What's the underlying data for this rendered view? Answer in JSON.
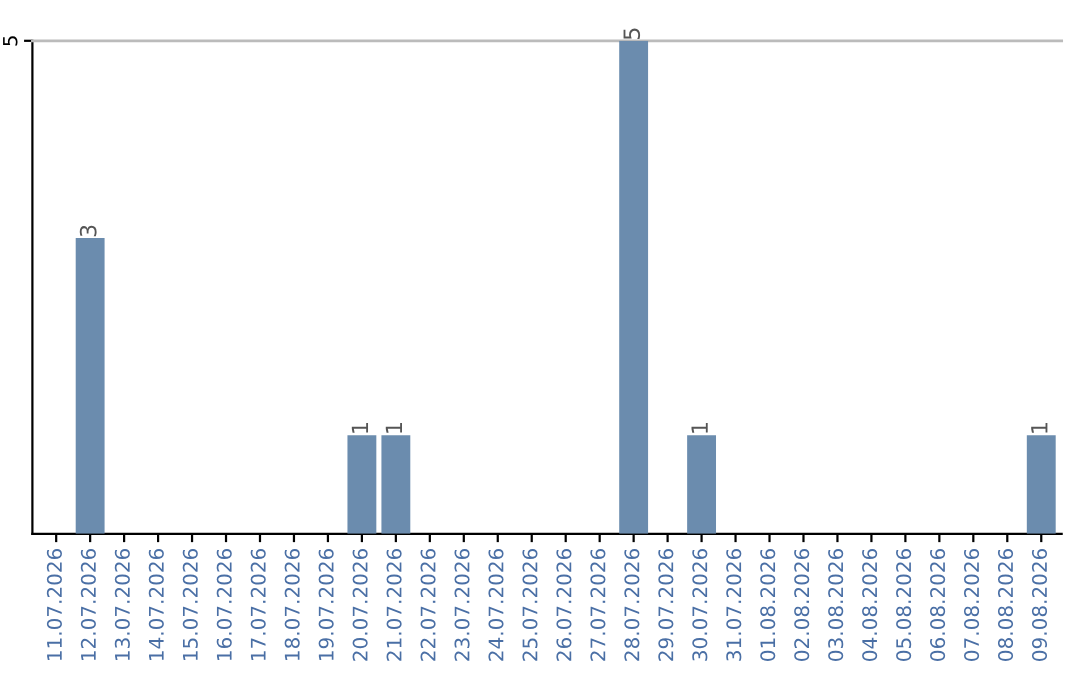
{
  "chart_data": {
    "type": "bar",
    "categories": [
      "11.07.2026",
      "12.07.2026",
      "13.07.2026",
      "14.07.2026",
      "15.07.2026",
      "16.07.2026",
      "17.07.2026",
      "18.07.2026",
      "19.07.2026",
      "20.07.2026",
      "21.07.2026",
      "22.07.2026",
      "23.07.2026",
      "24.07.2026",
      "25.07.2026",
      "26.07.2026",
      "27.07.2026",
      "28.07.2026",
      "29.07.2026",
      "30.07.2026",
      "31.07.2026",
      "01.08.2026",
      "02.08.2026",
      "03.08.2026",
      "04.08.2026",
      "05.08.2026",
      "06.08.2026",
      "07.08.2026",
      "08.08.2026",
      "09.08.2026"
    ],
    "values": [
      0,
      3,
      0,
      0,
      0,
      0,
      0,
      0,
      0,
      1,
      1,
      0,
      0,
      0,
      0,
      0,
      0,
      5,
      0,
      1,
      0,
      0,
      0,
      0,
      0,
      0,
      0,
      0,
      0,
      1
    ],
    "value_labels": [
      null,
      "3",
      null,
      null,
      null,
      null,
      null,
      null,
      null,
      "1",
      "1",
      null,
      null,
      null,
      null,
      null,
      null,
      "5",
      null,
      "1",
      null,
      null,
      null,
      null,
      null,
      null,
      null,
      null,
      null,
      "1"
    ],
    "color": "#6b8cae",
    "ylim": [
      0,
      5
    ],
    "yticks": [
      5
    ]
  }
}
